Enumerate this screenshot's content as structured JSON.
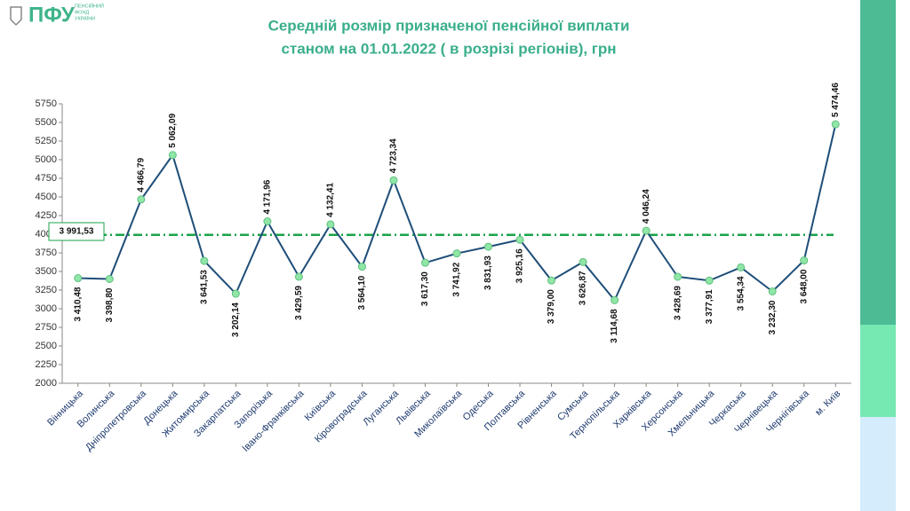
{
  "header": {
    "logo": "ПФУ",
    "org": [
      "ПЕНСІЙНИЙ",
      "ФОНД",
      "УКРАЇНИ"
    ]
  },
  "chart_data": {
    "type": "line",
    "title": "Середній розмір призначеної пенсійної виплати",
    "subtitle": "станом на 01.01.2022 ( в розрізі регіонів), грн",
    "categories": [
      "Вінницька",
      "Волинська",
      "Дніпропетровська",
      "Донецька",
      "Житомирська",
      "Закарпатська",
      "Запорізька",
      "Івано-Франківська",
      "Київська",
      "Кіровоградська",
      "Луганська",
      "Львівська",
      "Миколаївська",
      "Одеська",
      "Полтавська",
      "Рівненська",
      "Сумська",
      "Тернопільська",
      "Харківська",
      "Херсонська",
      "Хмельницька",
      "Черкаська",
      "Чернівецька",
      "Чернігівська",
      "м. Київ"
    ],
    "values": [
      3410.48,
      3398.8,
      4466.79,
      5062.09,
      3641.53,
      3202.14,
      4171.96,
      3429.59,
      4132.41,
      3564.1,
      4723.34,
      3617.3,
      3741.92,
      3831.93,
      3925.16,
      3379.0,
      3626.87,
      3114.68,
      4046.24,
      3428.69,
      3377.91,
      3554.34,
      3232.3,
      3648.0,
      5474.46
    ],
    "value_labels": [
      "3 410,48",
      "3 398,80",
      "4 466,79",
      "5 062,09",
      "3 641,53",
      "3 202,14",
      "4 171,96",
      "3 429,59",
      "4 132,41",
      "3 564,10",
      "4 723,34",
      "3 617,30",
      "3 741,92",
      "3 831,93",
      "3 925,16",
      "3 379,00",
      "3 626,87",
      "3 114,68",
      "4 046,24",
      "3 428,69",
      "3 377,91",
      "3 554,34",
      "3 232,30",
      "3 648,00",
      "5 474,46"
    ],
    "color": "#1f4e79",
    "marker_color": "#90e6a6",
    "average": {
      "value": 3991.53,
      "label": "3 991,53",
      "color": "#1aa34a"
    },
    "ylim": [
      2000,
      5750
    ],
    "yticks": [
      2000,
      2250,
      2500,
      2750,
      3000,
      3250,
      3500,
      3750,
      4000,
      4250,
      4500,
      4750,
      5000,
      5250,
      5500,
      5750
    ]
  }
}
